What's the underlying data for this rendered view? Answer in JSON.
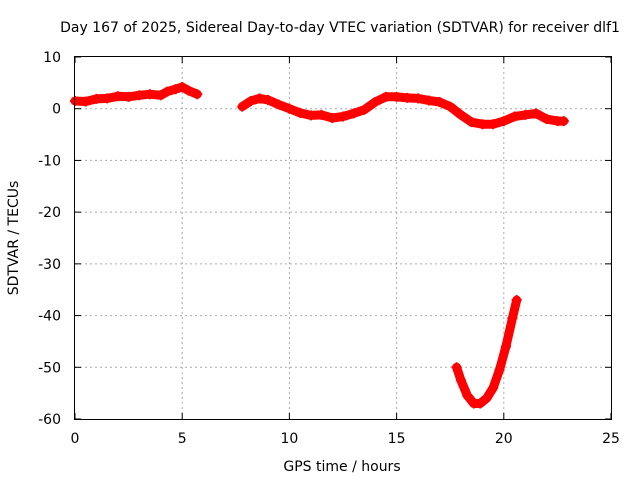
{
  "chart_data": {
    "type": "scatter",
    "title": "Day 167 of 2025, Sidereal Day-to-day VTEC variation (SDTVAR) for receiver dlf1",
    "xlabel": "GPS time / hours",
    "ylabel": "SDTVAR / TECUs",
    "xlim": [
      0,
      25
    ],
    "ylim": [
      -60,
      10
    ],
    "xticks": [
      0,
      5,
      10,
      15,
      20,
      25
    ],
    "yticks": [
      10,
      0,
      -10,
      -20,
      -30,
      -40,
      -50,
      -60
    ],
    "grid": true,
    "marker_color": "#ff0000",
    "series": [
      {
        "name": "segment-1",
        "points": [
          [
            0.0,
            1.5
          ],
          [
            0.5,
            1.4
          ],
          [
            1.0,
            1.9
          ],
          [
            1.5,
            2.0
          ],
          [
            2.0,
            2.4
          ],
          [
            2.5,
            2.3
          ],
          [
            3.0,
            2.6
          ],
          [
            3.5,
            2.8
          ],
          [
            4.0,
            2.6
          ],
          [
            4.3,
            3.3
          ],
          [
            4.7,
            3.8
          ],
          [
            5.0,
            4.2
          ],
          [
            5.3,
            3.5
          ],
          [
            5.7,
            2.8
          ]
        ]
      },
      {
        "name": "segment-2",
        "points": [
          [
            7.8,
            0.4
          ],
          [
            8.2,
            1.5
          ],
          [
            8.6,
            2.0
          ],
          [
            9.0,
            1.7
          ],
          [
            9.5,
            0.8
          ],
          [
            10.0,
            0.0
          ],
          [
            10.5,
            -0.8
          ],
          [
            11.0,
            -1.3
          ],
          [
            11.5,
            -1.2
          ],
          [
            12.0,
            -1.8
          ],
          [
            12.5,
            -1.5
          ],
          [
            13.0,
            -0.9
          ],
          [
            13.5,
            -0.2
          ],
          [
            14.0,
            1.3
          ],
          [
            14.5,
            2.3
          ],
          [
            15.0,
            2.3
          ],
          [
            15.5,
            2.1
          ],
          [
            16.0,
            2.0
          ],
          [
            16.5,
            1.6
          ],
          [
            17.0,
            1.3
          ],
          [
            17.5,
            0.4
          ],
          [
            18.0,
            -1.2
          ],
          [
            18.5,
            -2.6
          ],
          [
            19.0,
            -3.0
          ],
          [
            19.5,
            -3.0
          ],
          [
            20.0,
            -2.4
          ],
          [
            20.5,
            -1.5
          ],
          [
            21.0,
            -1.2
          ],
          [
            21.5,
            -0.9
          ],
          [
            22.0,
            -2.0
          ],
          [
            22.5,
            -2.4
          ],
          [
            22.8,
            -2.4
          ]
        ]
      },
      {
        "name": "segment-3",
        "points": [
          [
            17.8,
            -50.0
          ],
          [
            18.0,
            -52.5
          ],
          [
            18.3,
            -55.5
          ],
          [
            18.6,
            -57.0
          ],
          [
            18.9,
            -57.0
          ],
          [
            19.2,
            -56.0
          ],
          [
            19.5,
            -54.0
          ],
          [
            19.8,
            -50.5
          ],
          [
            20.1,
            -46.0
          ],
          [
            20.4,
            -40.5
          ],
          [
            20.6,
            -37.0
          ]
        ]
      }
    ]
  }
}
